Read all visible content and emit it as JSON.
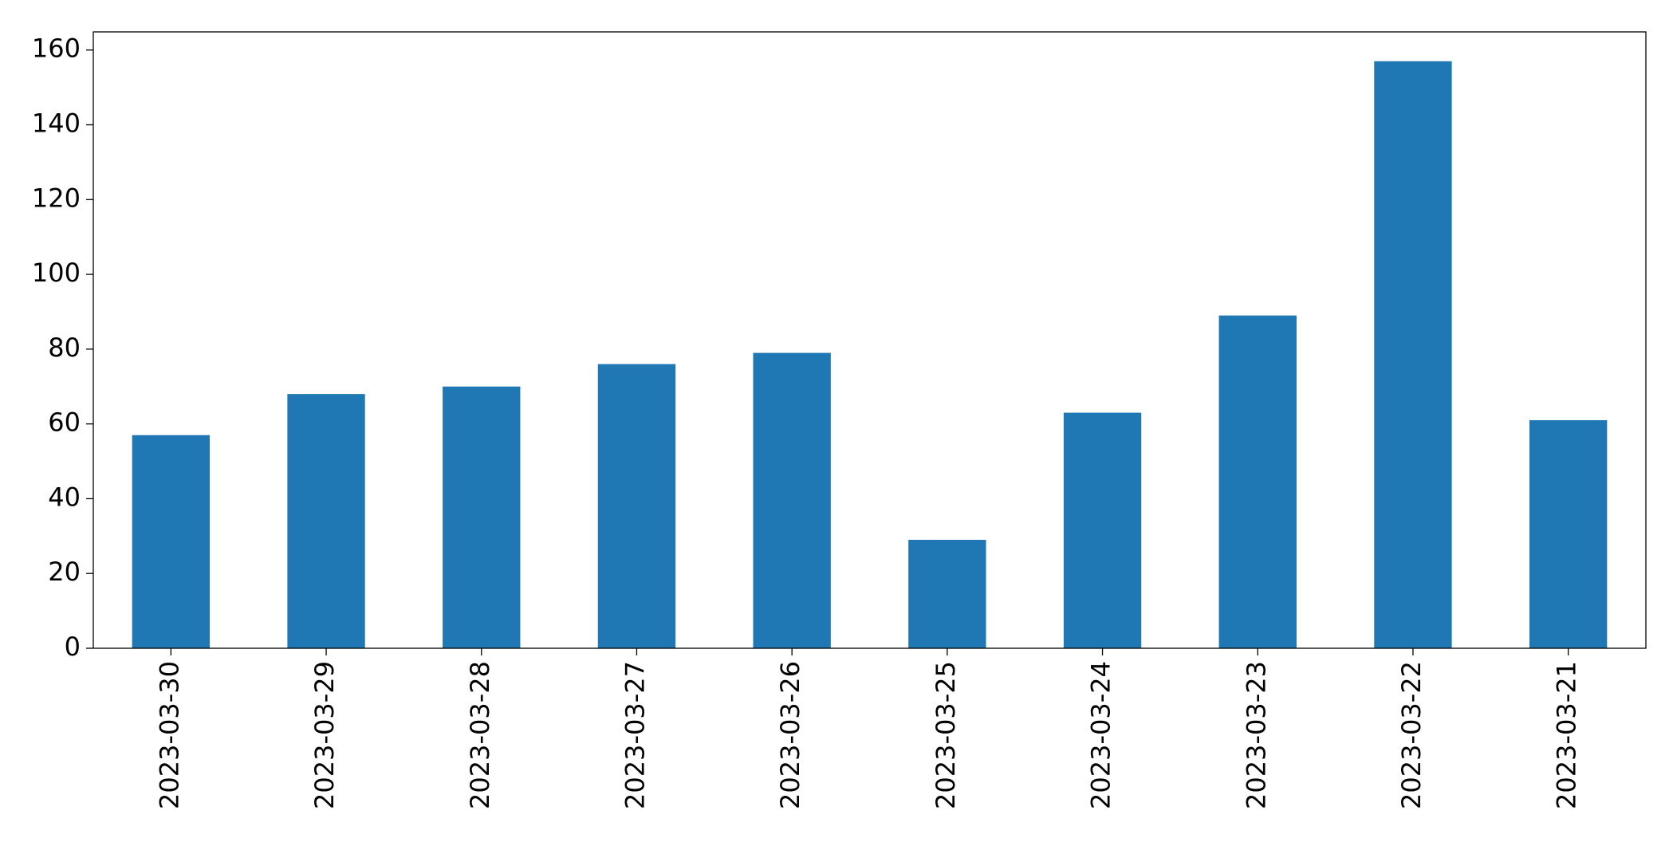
{
  "chart_data": {
    "type": "bar",
    "categories": [
      "2023-03-30",
      "2023-03-29",
      "2023-03-28",
      "2023-03-27",
      "2023-03-26",
      "2023-03-25",
      "2023-03-24",
      "2023-03-23",
      "2023-03-22",
      "2023-03-21"
    ],
    "values": [
      57,
      68,
      70,
      76,
      79,
      29,
      63,
      89,
      157,
      61
    ],
    "color": "#1f77b4",
    "ylim": [
      0,
      164.85
    ],
    "yticks": [
      0,
      20,
      40,
      60,
      80,
      100,
      120,
      140,
      160
    ],
    "grid": false
  }
}
